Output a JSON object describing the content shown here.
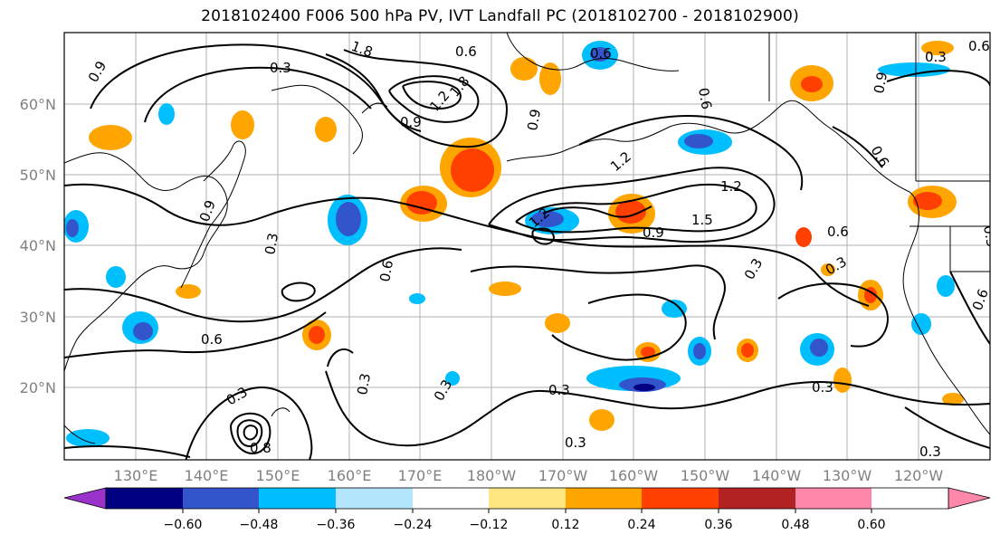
{
  "title": "2018102400 F006 500 hPa PV, IVT Landfall PC (2018102700 - 2018102900)",
  "lat_labels": [
    "60°N",
    "50°N",
    "40°N",
    "30°N",
    "20°N"
  ],
  "lon_labels": [
    "130°E",
    "140°E",
    "150°E",
    "160°E",
    "170°E",
    "180°W",
    "170°W",
    "160°W",
    "150°W",
    "140°W",
    "130°W",
    "120°W"
  ],
  "contour_labels": [
    "1.8",
    "0.6",
    "0.6",
    "0.9",
    "0.3",
    "0.3",
    "0.9",
    "1.2",
    "1.8",
    "0.6",
    "0.9",
    "0.6",
    "0.6",
    "0.9",
    "1.2",
    "0.9",
    "1.2",
    "1.5",
    "1.2",
    "0.9",
    "0.6",
    "0.3",
    "0.3",
    "0.6",
    "0.6",
    "0.3",
    "0.3",
    "0.3",
    "0.3",
    "0.3",
    "0.3",
    "0.3",
    "0.8",
    "0.3",
    "0.6",
    "0.3"
  ],
  "colorbar": {
    "colors": [
      "#9933cc",
      "#000080",
      "#3355cc",
      "#00bfff",
      "#b3e5fc",
      "#ffffff",
      "#ffe680",
      "#ffa500",
      "#ff4000",
      "#b22222",
      "#ff88aa"
    ],
    "tick_labels": [
      "−0.60",
      "−0.48",
      "−0.36",
      "−0.24",
      "−0.12",
      "0.12",
      "0.24",
      "0.36",
      "0.48",
      "0.60"
    ]
  },
  "colors": {
    "grid": "#b0b0b0",
    "contour": "#000000",
    "coast": "#000000"
  }
}
